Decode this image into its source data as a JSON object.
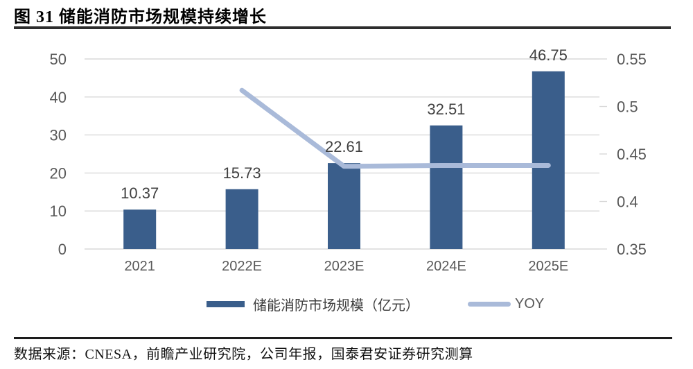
{
  "header": {
    "title": "图 31 储能消防市场规模持续增长"
  },
  "footer": {
    "source_text": "数据来源：CNESA，前瞻产业研究院，公司年报，国泰君安证券研究测算"
  },
  "colors": {
    "bar": "#3A5E8B",
    "line": "#A9BAD9",
    "grid": "#D9D9D9",
    "axis_text": "#595959",
    "data_label_text": "#404040",
    "rule": "#2d2d2d"
  },
  "chart_data": {
    "type": "bar",
    "title": "图 31 储能消防市场规模持续增长",
    "categories": [
      "2021",
      "2022E",
      "2023E",
      "2024E",
      "2025E"
    ],
    "series": [
      {
        "name": "储能消防市场规模（亿元）",
        "type": "bar",
        "axis": "left",
        "color": "#3A5E8B",
        "values": [
          10.37,
          15.73,
          22.61,
          32.51,
          46.75
        ],
        "labels": [
          "10.37",
          "15.73",
          "22.61",
          "32.51",
          "46.75"
        ]
      },
      {
        "name": "YOY",
        "type": "line",
        "axis": "right",
        "color": "#A9BAD9",
        "values": [
          null,
          0.517,
          0.437,
          0.438,
          0.438
        ]
      }
    ],
    "left_axis": {
      "min": 0,
      "max": 50,
      "tick_labels_top_to_bottom": [
        "50",
        "40",
        "30",
        "20",
        "10",
        "0"
      ]
    },
    "right_axis": {
      "min": 0.35,
      "max": 0.55,
      "tick_labels_top_to_bottom": [
        "0.55",
        "0.5",
        "0.45",
        "0.4",
        "0.35"
      ]
    },
    "grid": true,
    "legend_position": "bottom"
  }
}
